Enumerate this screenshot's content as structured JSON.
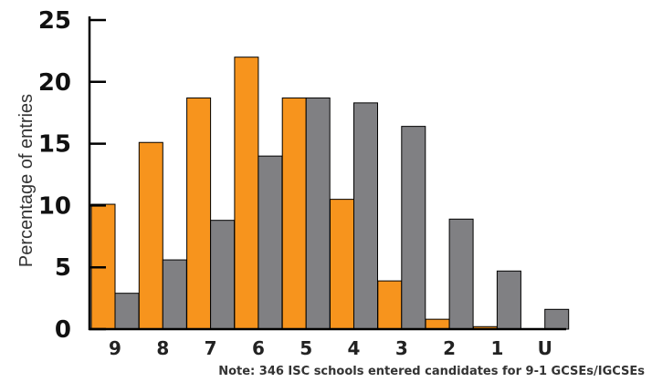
{
  "chart_data": {
    "type": "bar",
    "categories": [
      "9",
      "8",
      "7",
      "6",
      "5",
      "4",
      "3",
      "2",
      "1",
      "U"
    ],
    "series": [
      {
        "values": [
          10.1,
          15.1,
          18.7,
          22.0,
          18.7,
          10.5,
          3.9,
          0.8,
          0.2,
          0.0
        ],
        "color": "#f7941d"
      },
      {
        "values": [
          2.9,
          5.6,
          8.8,
          14.0,
          18.7,
          18.3,
          16.4,
          8.9,
          4.7,
          1.6
        ],
        "color": "#808083"
      }
    ],
    "ylabel": "Percentage of entries",
    "yticks": [
      0,
      5,
      10,
      15,
      20,
      25
    ],
    "ylim": [
      0,
      25
    ],
    "grid": false,
    "note": "Note: 346 ISC schools entered candidates for 9-1 GCSEs/IGCSEs"
  }
}
